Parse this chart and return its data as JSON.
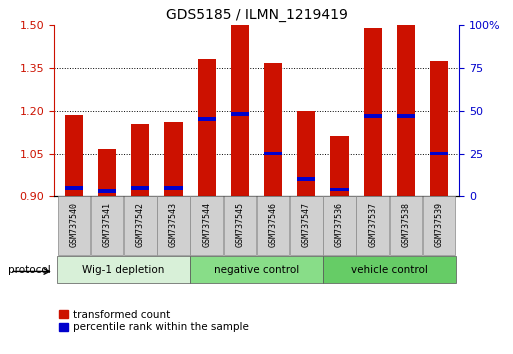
{
  "title": "GDS5185 / ILMN_1219419",
  "samples": [
    "GSM737540",
    "GSM737541",
    "GSM737542",
    "GSM737543",
    "GSM737544",
    "GSM737545",
    "GSM737546",
    "GSM737547",
    "GSM737536",
    "GSM737537",
    "GSM737538",
    "GSM737539"
  ],
  "transformed_count": [
    1.185,
    1.065,
    1.155,
    1.16,
    1.38,
    1.5,
    1.365,
    1.2,
    1.11,
    1.49,
    1.5,
    1.375
  ],
  "percentile_rank": [
    5,
    3,
    5,
    5,
    45,
    48,
    25,
    10,
    4,
    47,
    47,
    25
  ],
  "bar_bottom": 0.9,
  "ylim_left": [
    0.9,
    1.5
  ],
  "ylim_right": [
    0,
    100
  ],
  "yticks_left": [
    0.9,
    1.05,
    1.2,
    1.35,
    1.5
  ],
  "yticks_right": [
    0,
    25,
    50,
    75,
    100
  ],
  "bar_color": "#cc1100",
  "marker_color": "#0000cc",
  "groups": [
    {
      "label": "Wig-1 depletion",
      "start": 0,
      "end": 4
    },
    {
      "label": "negative control",
      "start": 4,
      "end": 8
    },
    {
      "label": "vehicle control",
      "start": 8,
      "end": 12
    }
  ],
  "group_colors": [
    "#d8f0d8",
    "#88dd88",
    "#66cc66"
  ],
  "legend_red": "transformed count",
  "legend_blue": "percentile rank within the sample",
  "protocol_label": "protocol",
  "bar_width": 0.55,
  "right_axis_color": "#0000cc",
  "left_axis_color": "#cc1100",
  "title_fontsize": 10,
  "tick_label_bg": "#cccccc"
}
